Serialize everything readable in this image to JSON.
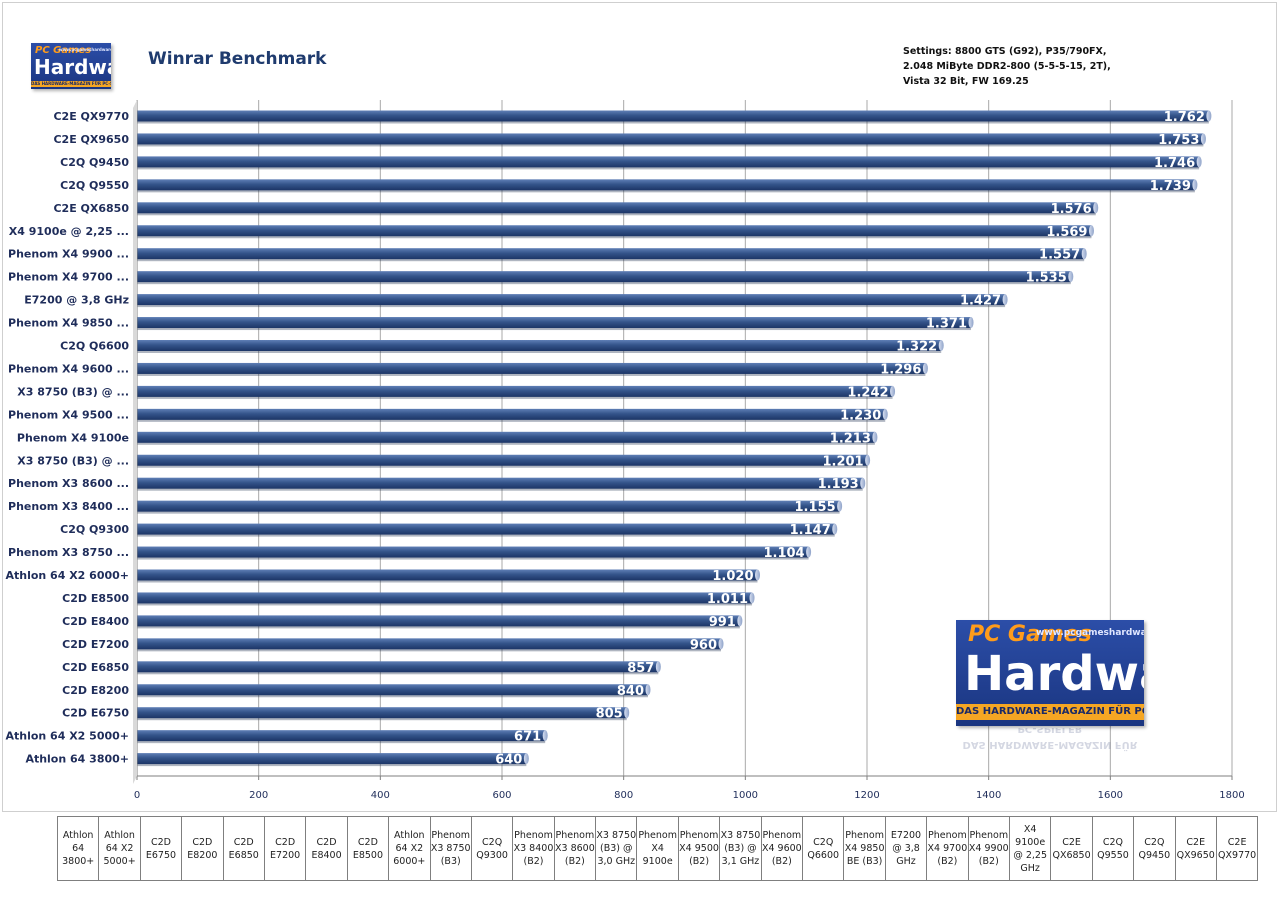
{
  "chart_data": {
    "type": "bar",
    "orientation": "horizontal",
    "title": "Winrar Benchmark",
    "subtitle_lines": [
      "Settings: 8800 GTS (G92), P35/790FX,",
      "2.048 MiByte DDR2-800 (5-5-5-15, 2T),",
      "Vista 32 Bit, FW 169.25"
    ],
    "xlim": [
      0,
      1800
    ],
    "x_ticks": [
      0,
      200,
      400,
      600,
      800,
      1000,
      1200,
      1400,
      1600,
      1800
    ],
    "grid": true,
    "legend": "none",
    "bar_color": "#34548a",
    "categories": [
      "C2E QX9770",
      "C2E QX9650",
      "C2Q Q9450",
      "C2Q Q9550",
      "C2E QX6850",
      "X4 9100e  @ 2,25 ...",
      "Phenom X4 9900 ...",
      "Phenom X4 9700 ...",
      "E7200  @ 3,8  GHz",
      "Phenom X4 9850 ...",
      "C2Q Q6600",
      "Phenom X4 9600 ...",
      "X3 8750  (B3)  @ ...",
      "Phenom X4 9500 ...",
      "Phenom X4 9100e",
      "X3 8750  (B3)  @ ...",
      "Phenom X3 8600 ...",
      "Phenom X3 8400 ...",
      "C2Q Q9300",
      "Phenom X3 8750 ...",
      "Athlon 64 X2 6000+",
      "C2D E8500",
      "C2D E8400",
      "C2D E7200",
      "C2D E6850",
      "C2D E8200",
      "C2D E6750",
      "Athlon 64 X2 5000+",
      "Athlon 64 3800+"
    ],
    "values": [
      1762,
      1753,
      1746,
      1739,
      1576,
      1569,
      1557,
      1535,
      1427,
      1371,
      1322,
      1296,
      1242,
      1230,
      1213,
      1201,
      1193,
      1155,
      1147,
      1104,
      1020,
      1011,
      991,
      960,
      857,
      840,
      805,
      671,
      640
    ],
    "value_labels": [
      "1.762",
      "1.753",
      "1.746",
      "1.739",
      "1.576",
      "1.569",
      "1.557",
      "1.535",
      "1.427",
      "1.371",
      "1.322",
      "1.296",
      "1.242",
      "1.230",
      "1.213",
      "1.201",
      "1.193",
      "1.155",
      "1.147",
      "1.104",
      "1.020",
      "1.011",
      "991",
      "960",
      "857",
      "840",
      "805",
      "671",
      "640"
    ]
  },
  "data_table": {
    "headers": [
      "Athlon 64 3800+",
      "Athlon 64 X2 5000+",
      "C2D E6750",
      "C2D E8200",
      "C2D E6850",
      "C2D E7200",
      "C2D E8400",
      "C2D E8500",
      "Athlon 64 X2 6000+",
      "Phenom X3 8750 (B3)",
      "C2Q Q9300",
      "Phenom X3 8400 (B2)",
      "Phenom X3 8600 (B2)",
      "X3 8750 (B3) @ 3,0 GHz",
      "Phenom X4 9100e",
      "Phenom X4 9500 (B2)",
      "X3 8750 (B3) @ 3,1 GHz",
      "Phenom X4 9600 (B2)",
      "C2Q Q6600",
      "Phenom X4 9850 BE (B3)",
      "E7200 @ 3,8 GHz",
      "Phenom X4 9700 (B2)",
      "Phenom X4 9900 (B2)",
      "X4 9100e @ 2,25 GHz",
      "C2E QX6850",
      "C2Q Q9550",
      "C2Q Q9450",
      "C2E QX9650",
      "C2E QX9770"
    ]
  },
  "logo": {
    "brand": "PC Games",
    "name": "Hardware",
    "url": "www.pcgameshardware.de",
    "tagline": "DAS HARDWARE-MAGAZIN FÜR PC-SPIELER"
  }
}
